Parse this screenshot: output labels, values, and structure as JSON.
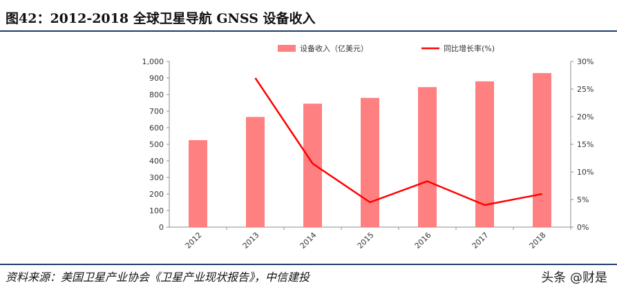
{
  "figure": {
    "title": "图42：2012-2018 全球卫星导航 GNSS 设备收入",
    "source": "资料来源：美国卫星产业协会《卫星产业现状报告》，中信建投",
    "watermark": "头条 @财是"
  },
  "chart_data": {
    "type": "bar",
    "categories": [
      "2012",
      "2013",
      "2014",
      "2015",
      "2016",
      "2017",
      "2018"
    ],
    "series": [
      {
        "name": "设备收入（亿美元）",
        "type": "bar",
        "axis": "left",
        "color": "#ff8080",
        "values": [
          525,
          665,
          745,
          780,
          845,
          880,
          930
        ]
      },
      {
        "name": "同比增长率(%)",
        "type": "line",
        "axis": "right",
        "color": "#ff0000",
        "values": [
          null,
          27,
          11.5,
          4.5,
          8.3,
          4,
          6
        ]
      }
    ],
    "y_left": {
      "min": 0,
      "max": 1000,
      "ticks": [
        "0",
        "100",
        "200",
        "300",
        "400",
        "500",
        "600",
        "700",
        "800",
        "900",
        "1,000"
      ]
    },
    "y_right": {
      "min": 0,
      "max": 30,
      "ticks": [
        "0%",
        "5%",
        "10%",
        "15%",
        "20%",
        "25%",
        "30%"
      ]
    },
    "legend_position": "top-center",
    "grid": false
  }
}
